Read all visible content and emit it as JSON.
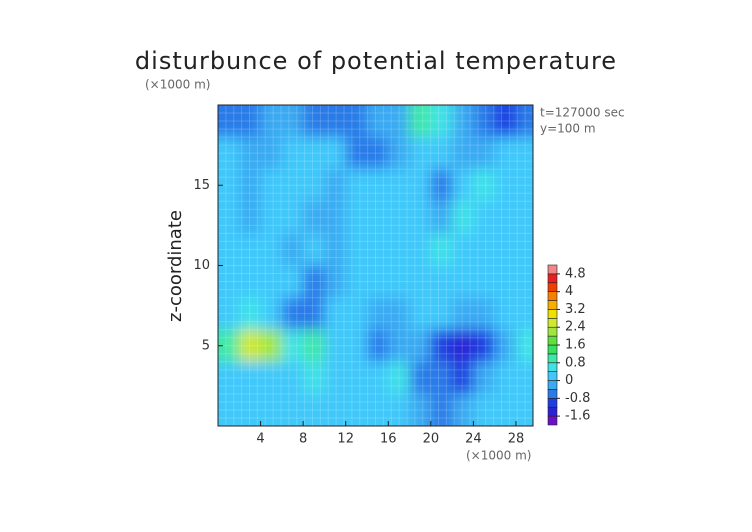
{
  "chart_data": {
    "type": "contour",
    "title": "disturbunce of potential temperature",
    "y_unit": "(×1000 m)",
    "x_unit": "(×1000 m)",
    "annotations": [
      "t=127000 sec",
      "y=100 m"
    ],
    "ylabel": "z-coordinate",
    "xlim": [
      0,
      29.6
    ],
    "ylim": [
      0,
      20
    ],
    "xticks": [
      4,
      8,
      12,
      16,
      20,
      24,
      28
    ],
    "yticks": [
      5,
      10,
      15
    ],
    "grid": true,
    "x": [
      1,
      3,
      5,
      7,
      9,
      11,
      13,
      15,
      17,
      19,
      21,
      23,
      25,
      27,
      29
    ],
    "z": [
      19,
      17,
      15,
      13,
      11,
      9,
      7,
      5,
      3,
      1
    ],
    "values": [
      [
        -0.5,
        -0.5,
        -0.3,
        -0.3,
        -0.5,
        -0.7,
        -0.5,
        -0.3,
        -0.4,
        0.9,
        0.6,
        -0.4,
        -0.8,
        -0.9,
        -0.6
      ],
      [
        0.1,
        -0.2,
        -0.4,
        0.1,
        0.1,
        0.1,
        -0.5,
        -0.6,
        -0.3,
        0.1,
        0.1,
        -0.3,
        -0.2,
        0.3,
        0.2
      ],
      [
        0.1,
        -0.3,
        0.2,
        0.1,
        0.2,
        -0.3,
        0.1,
        0.2,
        0.1,
        0.1,
        -0.5,
        0.1,
        0.4,
        0.2,
        0.1
      ],
      [
        0.2,
        -0.2,
        0.1,
        0.2,
        -0.4,
        -0.1,
        0.2,
        0.1,
        0.1,
        0.2,
        -0.2,
        0.4,
        0.2,
        0.1,
        0.2
      ],
      [
        0.1,
        0.2,
        0.1,
        -0.3,
        0.3,
        -0.4,
        0.1,
        0.2,
        0.1,
        0.2,
        0.4,
        0.2,
        0.1,
        0.2,
        0.1
      ],
      [
        0.2,
        0.1,
        0.3,
        0.2,
        -0.6,
        -0.3,
        0.2,
        0.1,
        0.2,
        0.3,
        0.2,
        0.1,
        0.2,
        0.3,
        0.2
      ],
      [
        0.2,
        0.4,
        0.3,
        -0.8,
        -0.6,
        0.2,
        0.1,
        -0.4,
        -0.3,
        0.1,
        0.2,
        -0.3,
        -0.2,
        0.2,
        0.3
      ],
      [
        0.8,
        2.6,
        2.2,
        0.6,
        0.9,
        0.3,
        0.2,
        -0.5,
        -0.3,
        -0.4,
        -1.2,
        -1.5,
        -1.0,
        -0.3,
        0.7
      ],
      [
        0.1,
        0.2,
        0.3,
        0.2,
        0.5,
        0.2,
        0.1,
        0.1,
        0.6,
        -0.8,
        -0.6,
        -0.9,
        -0.4,
        0.2,
        0.3
      ],
      [
        0.1,
        0.1,
        0.2,
        0.1,
        0.2,
        0.1,
        0.1,
        0.2,
        0.1,
        -0.3,
        -0.6,
        -0.2,
        0.1,
        0.2,
        0.1
      ]
    ],
    "colorbar": {
      "levels": [
        -2.0,
        -1.6,
        -1.2,
        -0.8,
        -0.4,
        0,
        0.4,
        0.8,
        1.2,
        1.6,
        2.0,
        2.4,
        2.8,
        3.2,
        3.6,
        4.0,
        4.4,
        4.8,
        5.2
      ],
      "colors": [
        "#6a10c8",
        "#2a22d4",
        "#1f3fe0",
        "#2a7ae8",
        "#3aaaf2",
        "#40c8fa",
        "#40e2e8",
        "#40e8a8",
        "#38e060",
        "#60e040",
        "#a0e640",
        "#d0e830",
        "#f0e000",
        "#f8b000",
        "#f88000",
        "#f04000",
        "#e82020",
        "#f08888"
      ],
      "ticks": [
        4.8,
        4,
        3.2,
        2.4,
        1.6,
        0.8,
        0,
        -0.8,
        -1.6
      ]
    }
  }
}
